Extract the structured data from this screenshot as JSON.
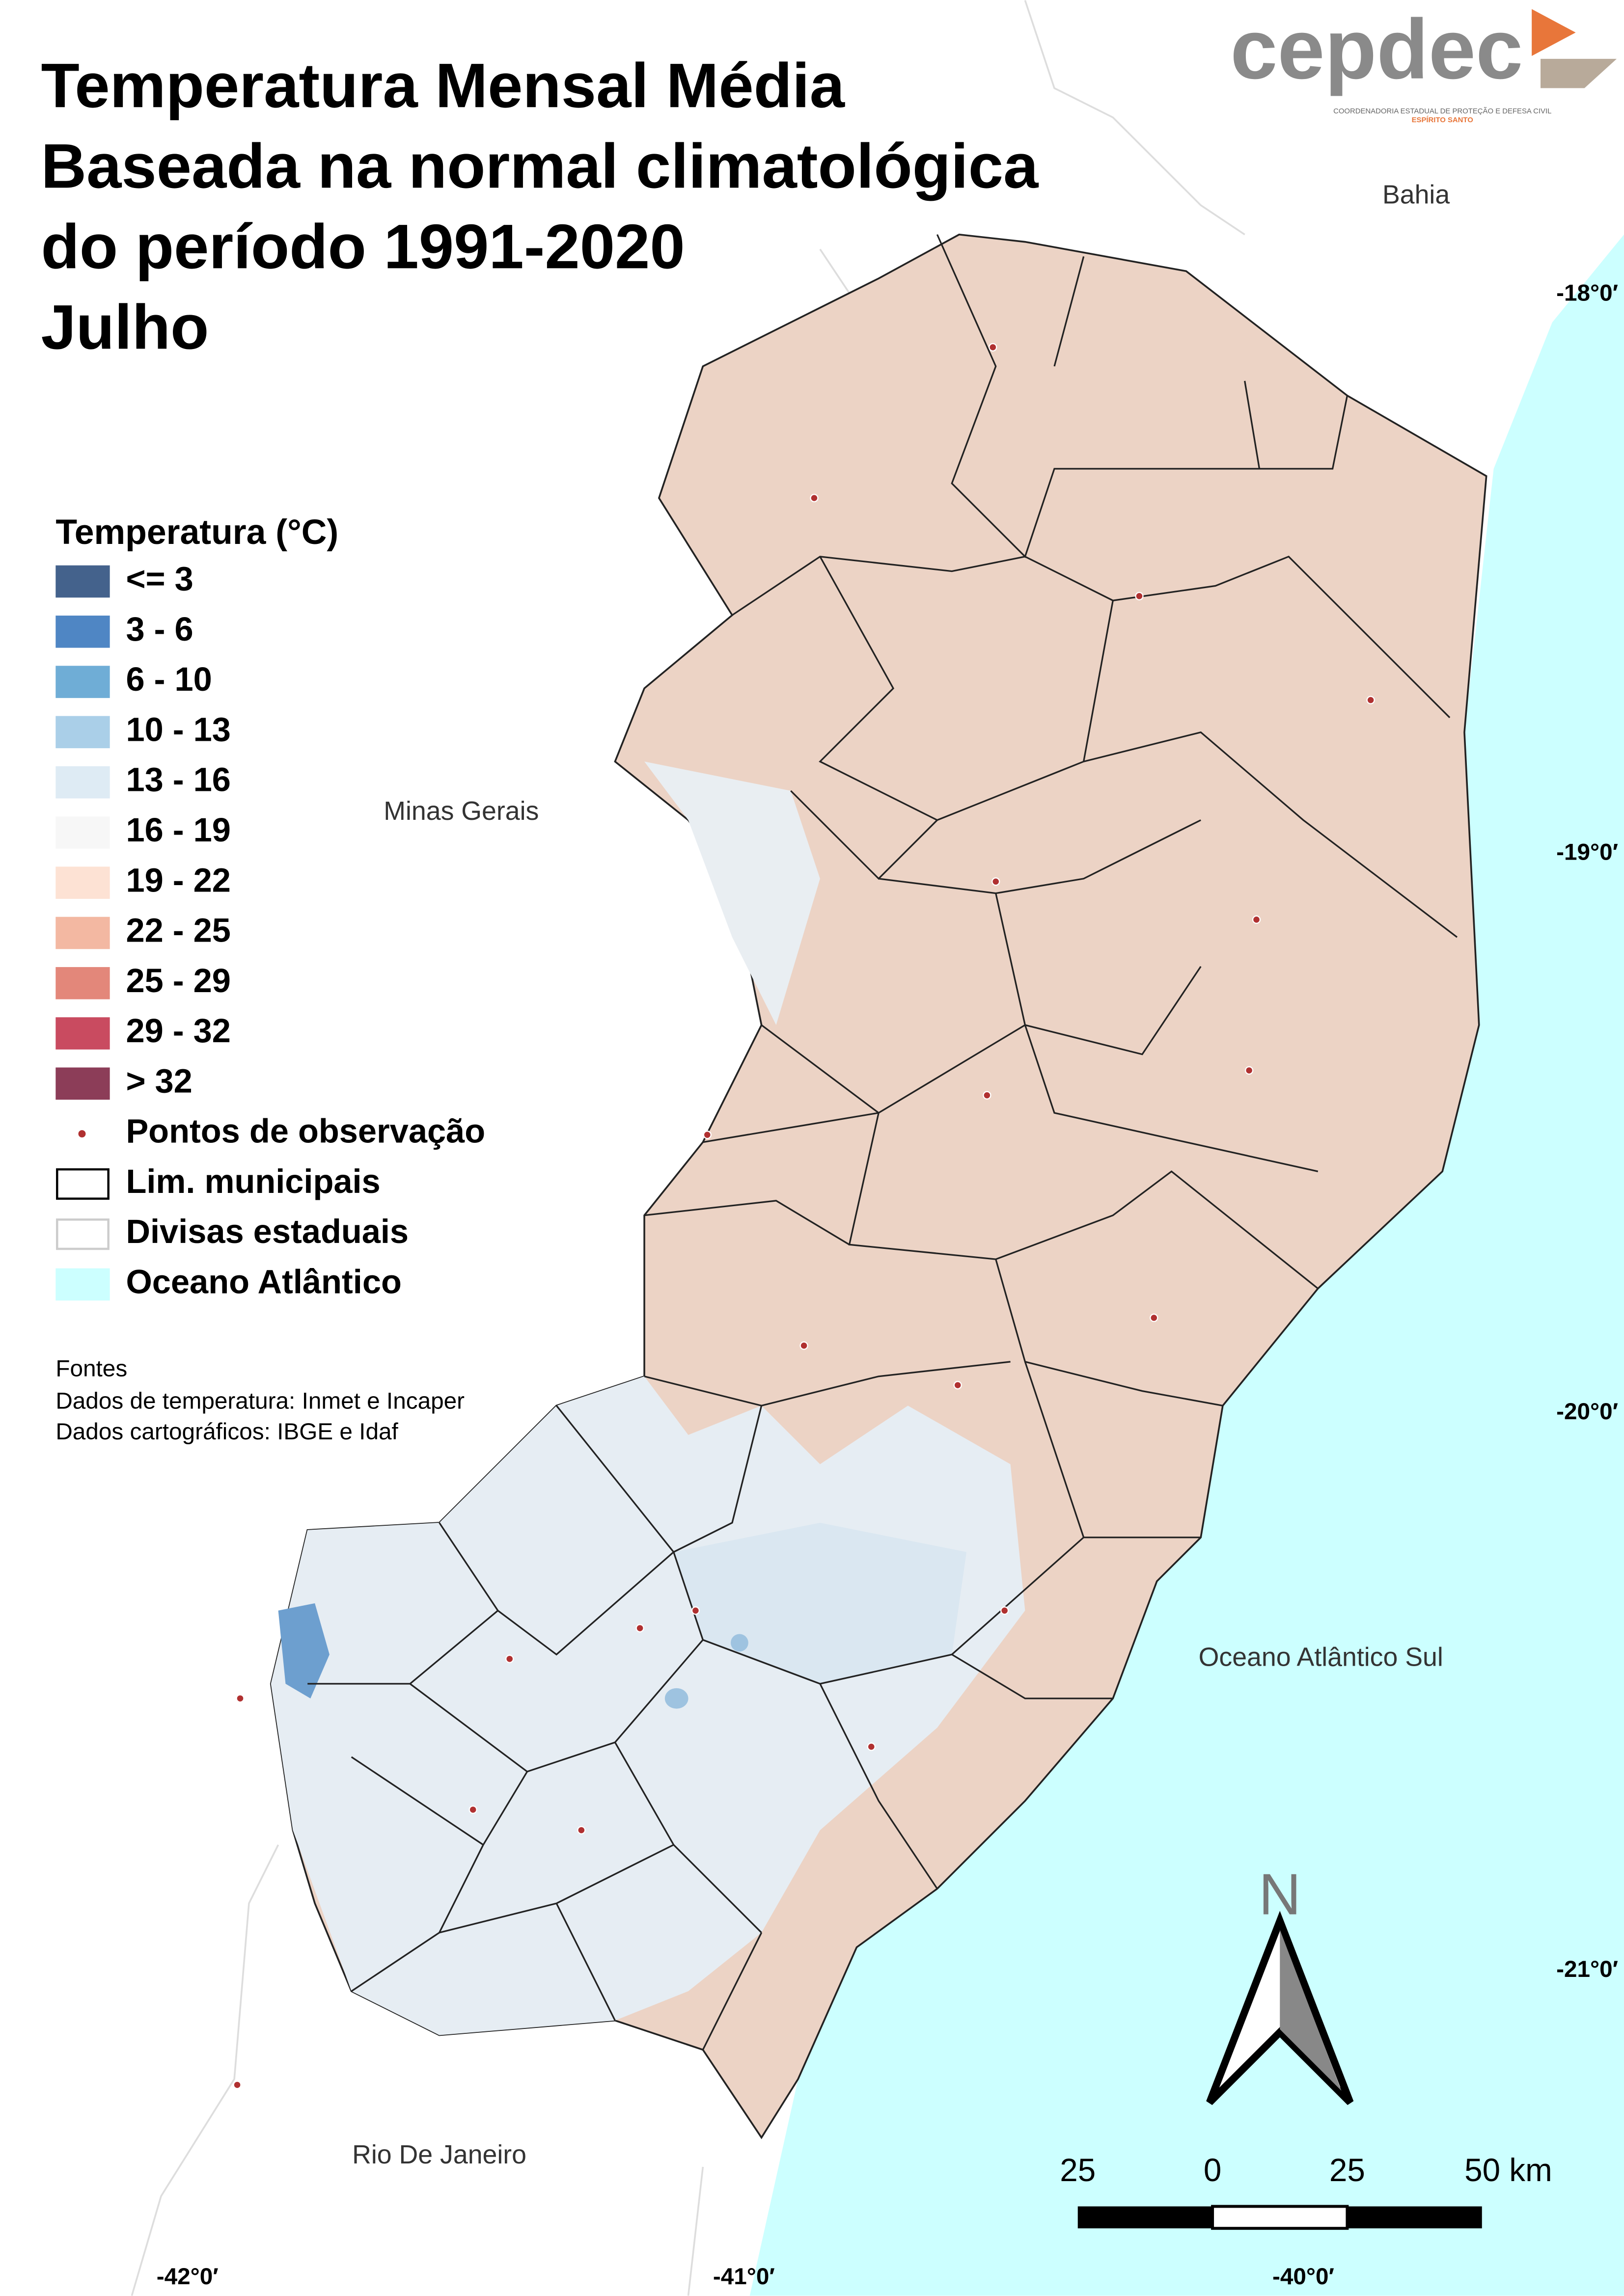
{
  "header": {
    "title_lines": [
      "Temperatura Mensal Média",
      "Baseada na normal climatológica",
      "do período 1991-2020",
      "Julho"
    ]
  },
  "logo": {
    "name": "cepdec",
    "subtitle": "COORDENADORIA ESTADUAL DE PROTEÇÃO E DEFESA CIVIL",
    "region": "ESPÍRITO SANTO"
  },
  "legend": {
    "title": "Temperatura (°C)",
    "items": [
      {
        "label": "<= 3",
        "color": "#44628c"
      },
      {
        "label": "3 - 6",
        "color": "#4f86c4"
      },
      {
        "label": "6 - 10",
        "color": "#6fadd6"
      },
      {
        "label": "10 - 13",
        "color": "#aacfe8"
      },
      {
        "label": "13 - 16",
        "color": "#deebf4"
      },
      {
        "label": "16 - 19",
        "color": "#f7f7f7"
      },
      {
        "label": "19 - 22",
        "color": "#fde2d4"
      },
      {
        "label": "22 - 25",
        "color": "#f3b8a2"
      },
      {
        "label": "25 - 29",
        "color": "#e3877a"
      },
      {
        "label": "29 - 32",
        "color": "#c94b60"
      },
      {
        "label": "> 32",
        "color": "#8c3d58"
      },
      {
        "label": "Pontos de observação",
        "color": "#b03030"
      },
      {
        "label": "Lim. municipais",
        "color": "#000000"
      },
      {
        "label": "Divisas estaduais",
        "color": "#cccccc"
      },
      {
        "label": "Oceano Atlântico",
        "color": "#ccffff"
      }
    ]
  },
  "places": [
    "Bahia",
    "Minas Gerais",
    "Oceano Atlântico Sul",
    "Rio De Janeiro"
  ],
  "latitude_labels": [
    "-18°0′",
    "-19°0′",
    "-20°0′",
    "-21°0′"
  ],
  "longitude_labels": [
    "-42°0′",
    "-41°0′",
    "-40°0′"
  ],
  "sources": {
    "heading": "Fontes",
    "lines": [
      "Dados de temperatura: Inmet e Incaper",
      "Dados cartográficos: IBGE e Idaf"
    ]
  },
  "scale_bar": {
    "labels": [
      "25",
      "0",
      "25",
      "50 km"
    ]
  },
  "north_arrow": "N"
}
